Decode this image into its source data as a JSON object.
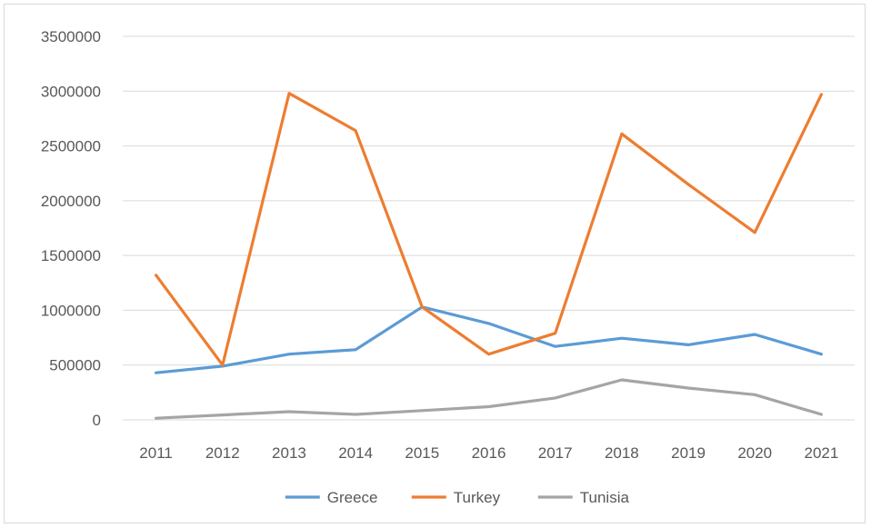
{
  "chart_data": {
    "type": "line",
    "title": "",
    "xlabel": "",
    "ylabel": "",
    "categories": [
      "2011",
      "2012",
      "2013",
      "2014",
      "2015",
      "2016",
      "2017",
      "2018",
      "2019",
      "2020",
      "2021"
    ],
    "ylim": [
      0,
      3500000
    ],
    "yticks": [
      0,
      500000,
      1000000,
      1500000,
      2000000,
      2500000,
      3000000,
      3500000
    ],
    "ytick_labels": [
      "0",
      "500000",
      "1000000",
      "1500000",
      "2000000",
      "2500000",
      "3000000",
      "3500000"
    ],
    "grid": true,
    "legend_position": "bottom",
    "series": [
      {
        "name": "Greece",
        "color": "#5b9bd5",
        "values": [
          430000,
          490000,
          600000,
          640000,
          1030000,
          880000,
          670000,
          745000,
          685000,
          780000,
          600000
        ]
      },
      {
        "name": "Turkey",
        "color": "#ed7d31",
        "values": [
          1320000,
          500000,
          2980000,
          2640000,
          1030000,
          600000,
          790000,
          2610000,
          2150000,
          1710000,
          2970000
        ]
      },
      {
        "name": "Tunisia",
        "color": "#a5a5a5",
        "values": [
          15000,
          45000,
          75000,
          50000,
          85000,
          120000,
          200000,
          365000,
          290000,
          230000,
          50000
        ]
      }
    ]
  }
}
